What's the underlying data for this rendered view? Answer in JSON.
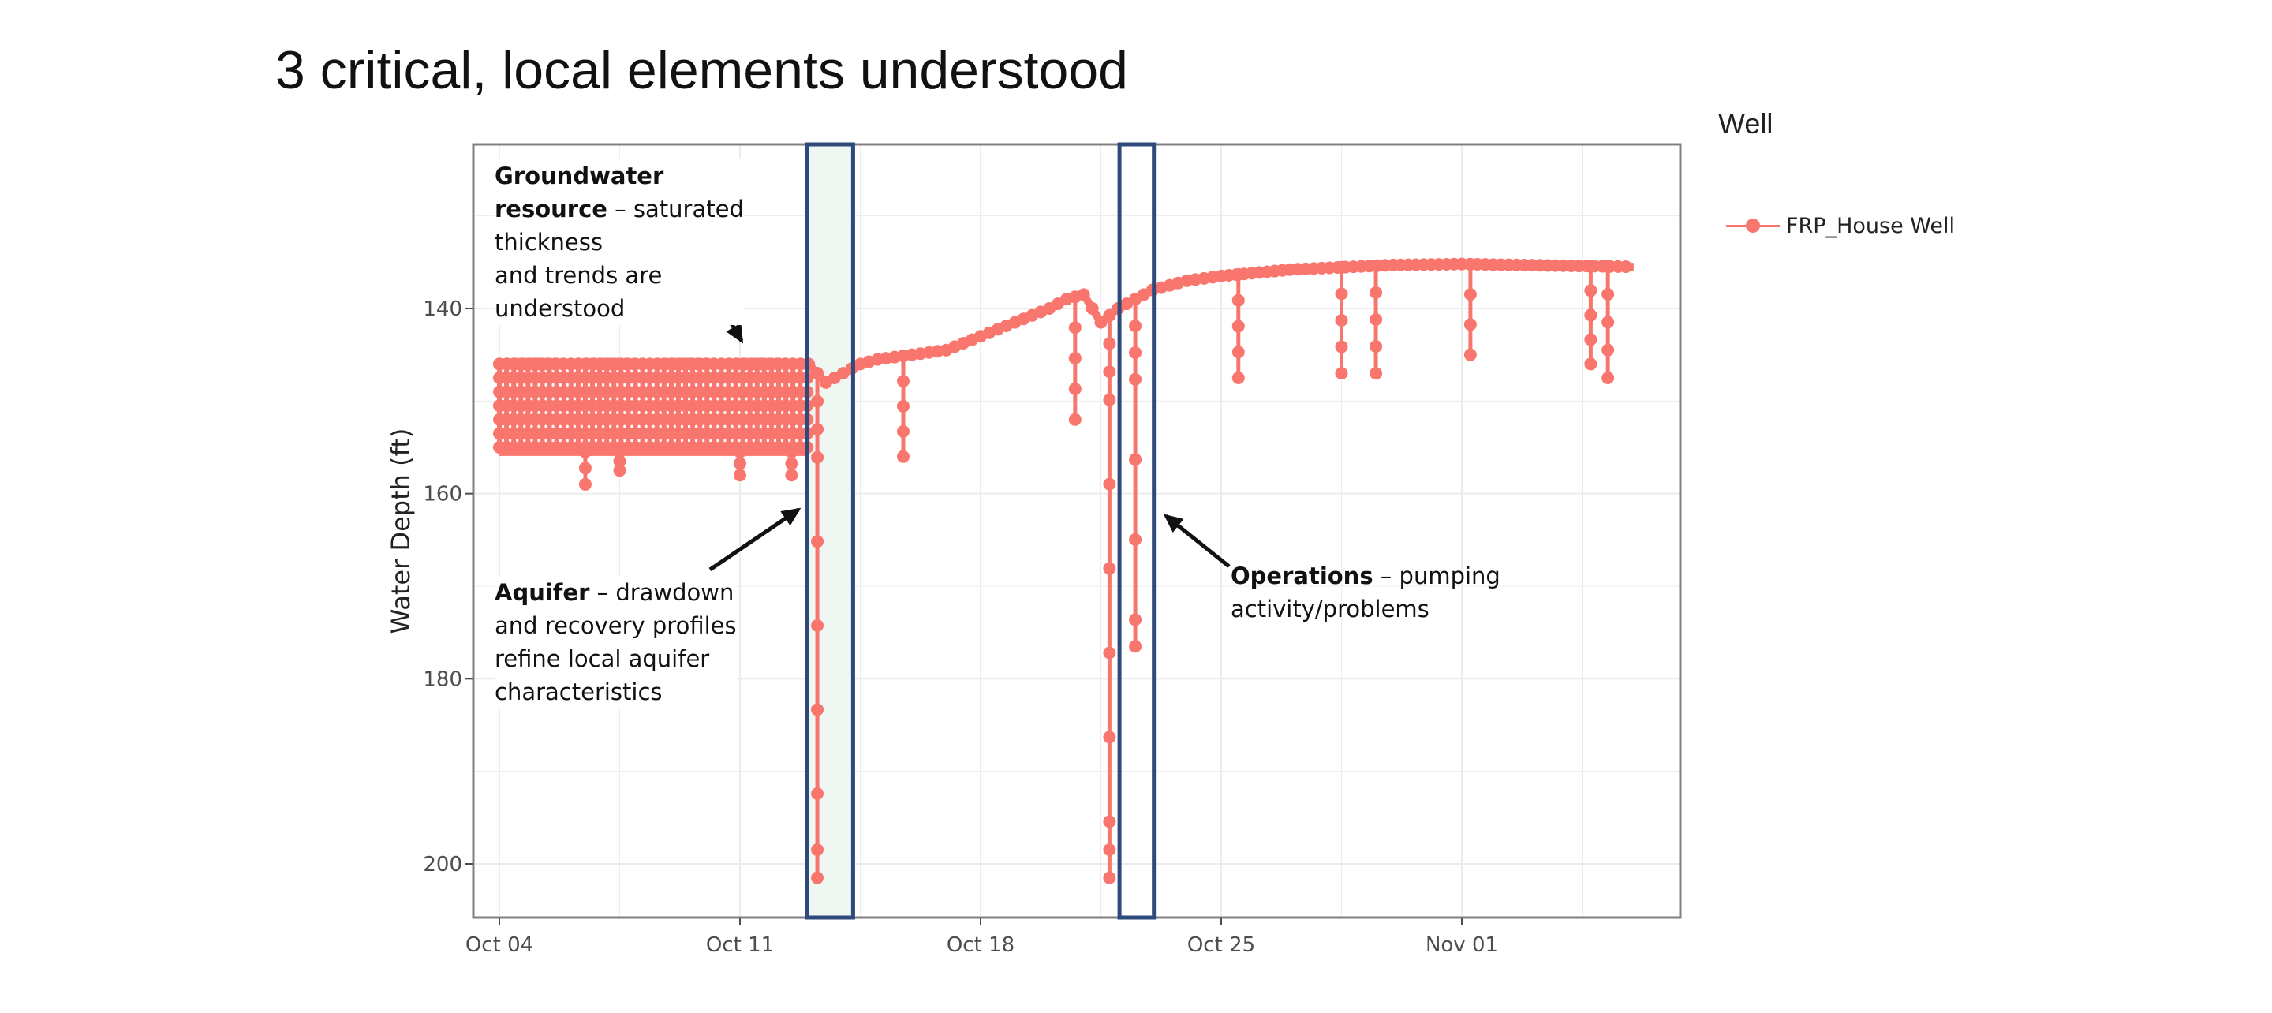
{
  "slide": {
    "title": "3 critical, local elements understood"
  },
  "legend": {
    "title": "Well",
    "items": [
      {
        "label": "FRP_House Well",
        "color": "#F8766D"
      }
    ]
  },
  "annotations": {
    "groundwater": {
      "bold1": "Groundwater",
      "bold2": "resource",
      "rest1": " – saturated",
      "line3": "thickness",
      "line4": "and trends are",
      "line5": "understood"
    },
    "aquifer": {
      "bold": "Aquifer",
      "rest1": " – drawdown",
      "line2": "and recovery profiles",
      "line3": "refine local aquifer",
      "line4": "characteristics"
    },
    "operations": {
      "bold": "Operations",
      "rest1": " – pumping",
      "line2": "activity/problems"
    }
  },
  "chart_data": {
    "type": "line",
    "ylabel": "Water Depth (ft)",
    "xlabel": "",
    "y_reversed": true,
    "ylim": [
      205,
      122
    ],
    "xlim": [
      "2023-10-03",
      "2023-11-07"
    ],
    "x_ticks": [
      "Oct 04",
      "Oct 11",
      "Oct 18",
      "Oct 25",
      "Nov 01"
    ],
    "y_ticks": [
      140,
      160,
      180,
      200
    ],
    "grid": true,
    "series": [
      {
        "name": "FRP_House Well",
        "color": "#F8766D",
        "baseline": [
          [
            "2023-10-04",
            146
          ],
          [
            "2023-10-13",
            146
          ],
          [
            "2023-10-13 12:00",
            148
          ],
          [
            "2023-10-14 12:00",
            146
          ],
          [
            "2023-10-15",
            145.5
          ],
          [
            "2023-10-16",
            145
          ],
          [
            "2023-10-17",
            144.5
          ],
          [
            "2023-10-18",
            143
          ],
          [
            "2023-10-19",
            141.5
          ],
          [
            "2023-10-20",
            140
          ],
          [
            "2023-10-20 12:00",
            139
          ],
          [
            "2023-10-21",
            138.5
          ],
          [
            "2023-10-21 12:00",
            141.5
          ],
          [
            "2023-10-22",
            140
          ],
          [
            "2023-10-23",
            138
          ],
          [
            "2023-10-24",
            137
          ],
          [
            "2023-10-25",
            136.5
          ],
          [
            "2023-10-27",
            135.8
          ],
          [
            "2023-10-30",
            135.3
          ],
          [
            "2023-11-01",
            135.2
          ],
          [
            "2023-11-06",
            135.5
          ]
        ],
        "pumping_cycles": {
          "start": "2023-10-04",
          "end": "2023-10-13",
          "step_hours": 5,
          "top": 146,
          "bottom": 155.5
        },
        "spikes": [
          [
            "2023-10-06 12:00",
            159
          ],
          [
            "2023-10-07 12:00",
            157.5
          ],
          [
            "2023-10-11",
            158
          ],
          [
            "2023-10-12 12:00",
            158
          ],
          [
            "2023-10-13 06:00",
            201.5
          ],
          [
            "2023-10-15 18:00",
            156
          ],
          [
            "2023-10-20 18:00",
            152
          ],
          [
            "2023-10-21 18:00",
            201.5
          ],
          [
            "2023-10-22 12:00",
            176.5
          ],
          [
            "2023-10-25 12:00",
            147.5
          ],
          [
            "2023-10-28 12:00",
            147
          ],
          [
            "2023-10-29 12:00",
            147
          ],
          [
            "2023-11-01 06:00",
            145
          ],
          [
            "2023-11-04 18:00",
            146
          ],
          [
            "2023-11-05 06:00",
            147.5
          ]
        ]
      }
    ],
    "highlight_boxes": [
      {
        "label": "Aquifer",
        "x_start": "2023-10-12 23:00",
        "x_end": "2023-10-14 07:00",
        "fill": "#EEF7F1"
      },
      {
        "label": "Operations",
        "x_start": "2023-10-22 01:00",
        "x_end": "2023-10-23 01:00",
        "fill": "none"
      }
    ],
    "box_stroke": "#2E4A7D"
  }
}
